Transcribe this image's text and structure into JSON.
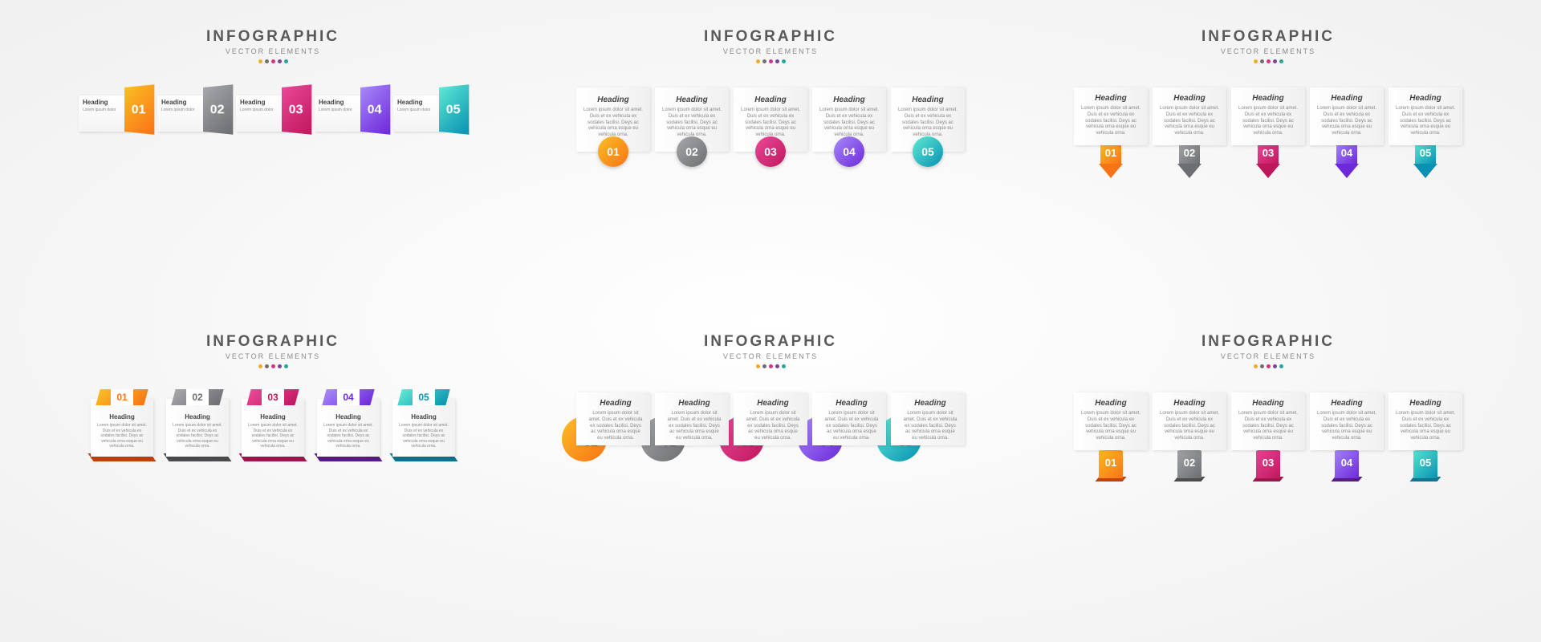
{
  "header": {
    "title": "INFOGRAPHIC",
    "subtitle": "VECTOR ELEMENTS"
  },
  "palette": {
    "dot_colors": [
      "#f9a825",
      "#6d6e71",
      "#d63384",
      "#7b4397",
      "#26a69a"
    ],
    "items": [
      {
        "num": "01",
        "grad_a": "#fbbf24",
        "grad_b": "#f97316",
        "dark": "#c2410c"
      },
      {
        "num": "02",
        "grad_a": "#a6a8ab",
        "grad_b": "#6d6e71",
        "dark": "#4b4c4e"
      },
      {
        "num": "03",
        "grad_a": "#ec4899",
        "grad_b": "#be185d",
        "dark": "#9d174d"
      },
      {
        "num": "04",
        "grad_a": "#a78bfa",
        "grad_b": "#6d28d9",
        "dark": "#581c87"
      },
      {
        "num": "05",
        "grad_a": "#5eead4",
        "grad_b": "#0891b2",
        "dark": "#0e7490"
      }
    ]
  },
  "content": {
    "heading": "Heading",
    "lorem": "Lorem ipsum dolor sit amet. Duis et ex vehicula ex sodales facilisi. Deys ac vehicula orna esque eu vehicula orna."
  },
  "styles": [
    "s1",
    "s2",
    "s3",
    "s4",
    "s5",
    "s6"
  ]
}
